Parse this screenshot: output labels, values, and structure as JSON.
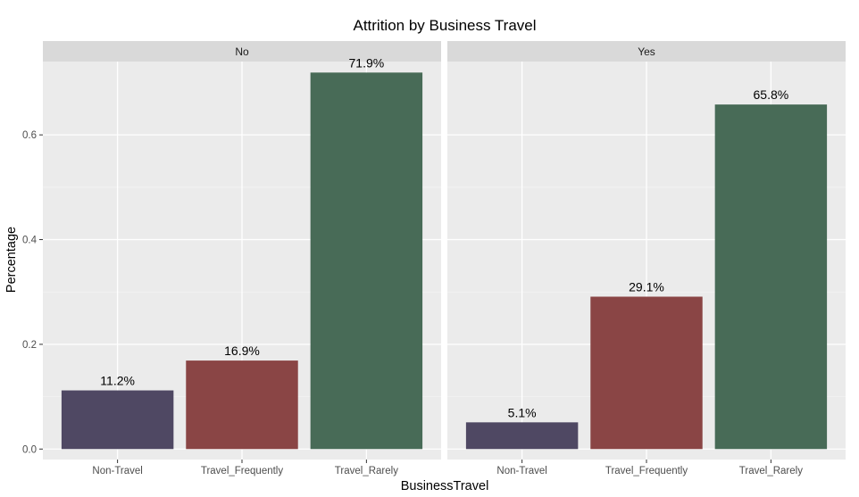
{
  "chart_data": {
    "type": "bar",
    "title": "Attrition by Business Travel",
    "xlabel": "BusinessTravel",
    "ylabel": "Percentage",
    "ylim": [
      -0.02,
      0.74
    ],
    "y_ticks": [
      0.0,
      0.2,
      0.4,
      0.6
    ],
    "y_tick_labels": [
      "0.0",
      "0.2",
      "0.4",
      "0.6"
    ],
    "categories": [
      "Non-Travel",
      "Travel_Frequently",
      "Travel_Rarely"
    ],
    "colors": {
      "Non-Travel": "#4f4863",
      "Travel_Frequently": "#8a4545",
      "Travel_Rarely": "#486b57"
    },
    "grid": true,
    "legend": "none",
    "facets": [
      {
        "label": "No",
        "values": [
          0.112,
          0.169,
          0.719
        ],
        "data_labels": [
          "11.2%",
          "16.9%",
          "71.9%"
        ]
      },
      {
        "label": "Yes",
        "values": [
          0.051,
          0.291,
          0.658
        ],
        "data_labels": [
          "5.1%",
          "29.1%",
          "65.8%"
        ]
      }
    ]
  }
}
